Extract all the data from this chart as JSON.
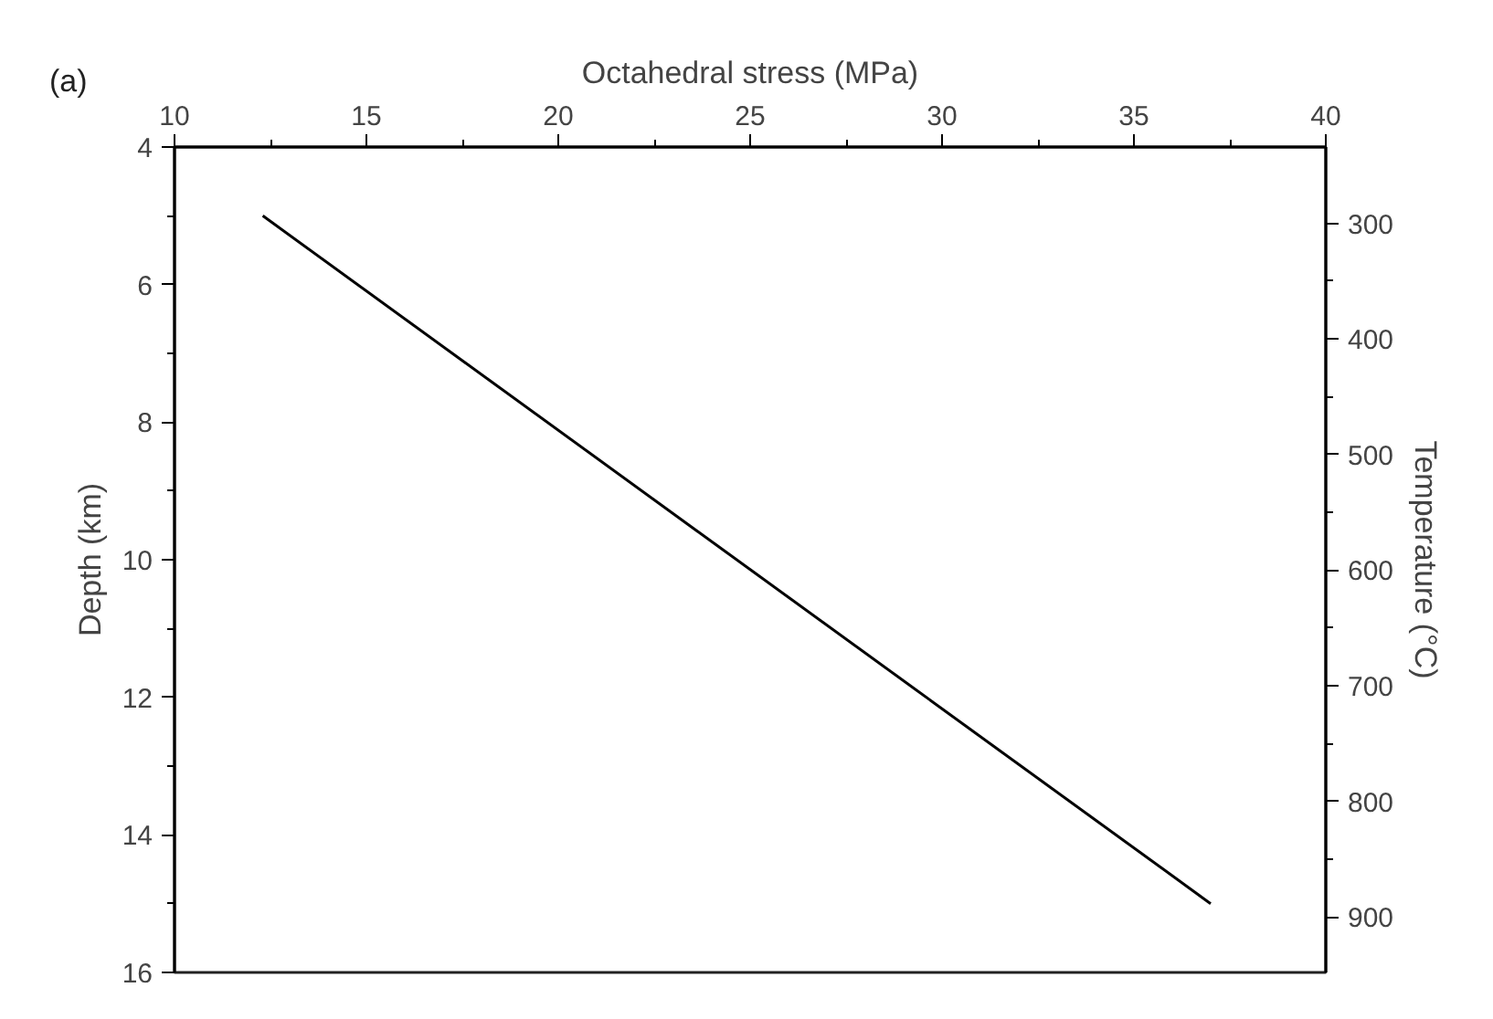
{
  "chart_data": {
    "type": "line",
    "xlabel": "Octahedral stress (MPa)",
    "ylabel": "Depth (km)",
    "y2label": "Temperature (°C)",
    "annotations": [
      "(a)"
    ],
    "x": [
      12.3,
      37
    ],
    "series": [
      {
        "color": "#000000",
        "values": [
          5,
          15
        ]
      }
    ],
    "xlim": [
      10,
      40
    ],
    "xticks": [
      10,
      15,
      20,
      25,
      30,
      35,
      40
    ],
    "ylim": [
      16,
      4
    ],
    "yticks": [
      4,
      6,
      8,
      10,
      12,
      14,
      16
    ],
    "y2lim": [
      948,
      234
    ],
    "y2ticks": [
      300,
      400,
      500,
      600,
      700,
      800,
      900
    ],
    "grid": false,
    "marker": "none",
    "line_style": "solid"
  }
}
